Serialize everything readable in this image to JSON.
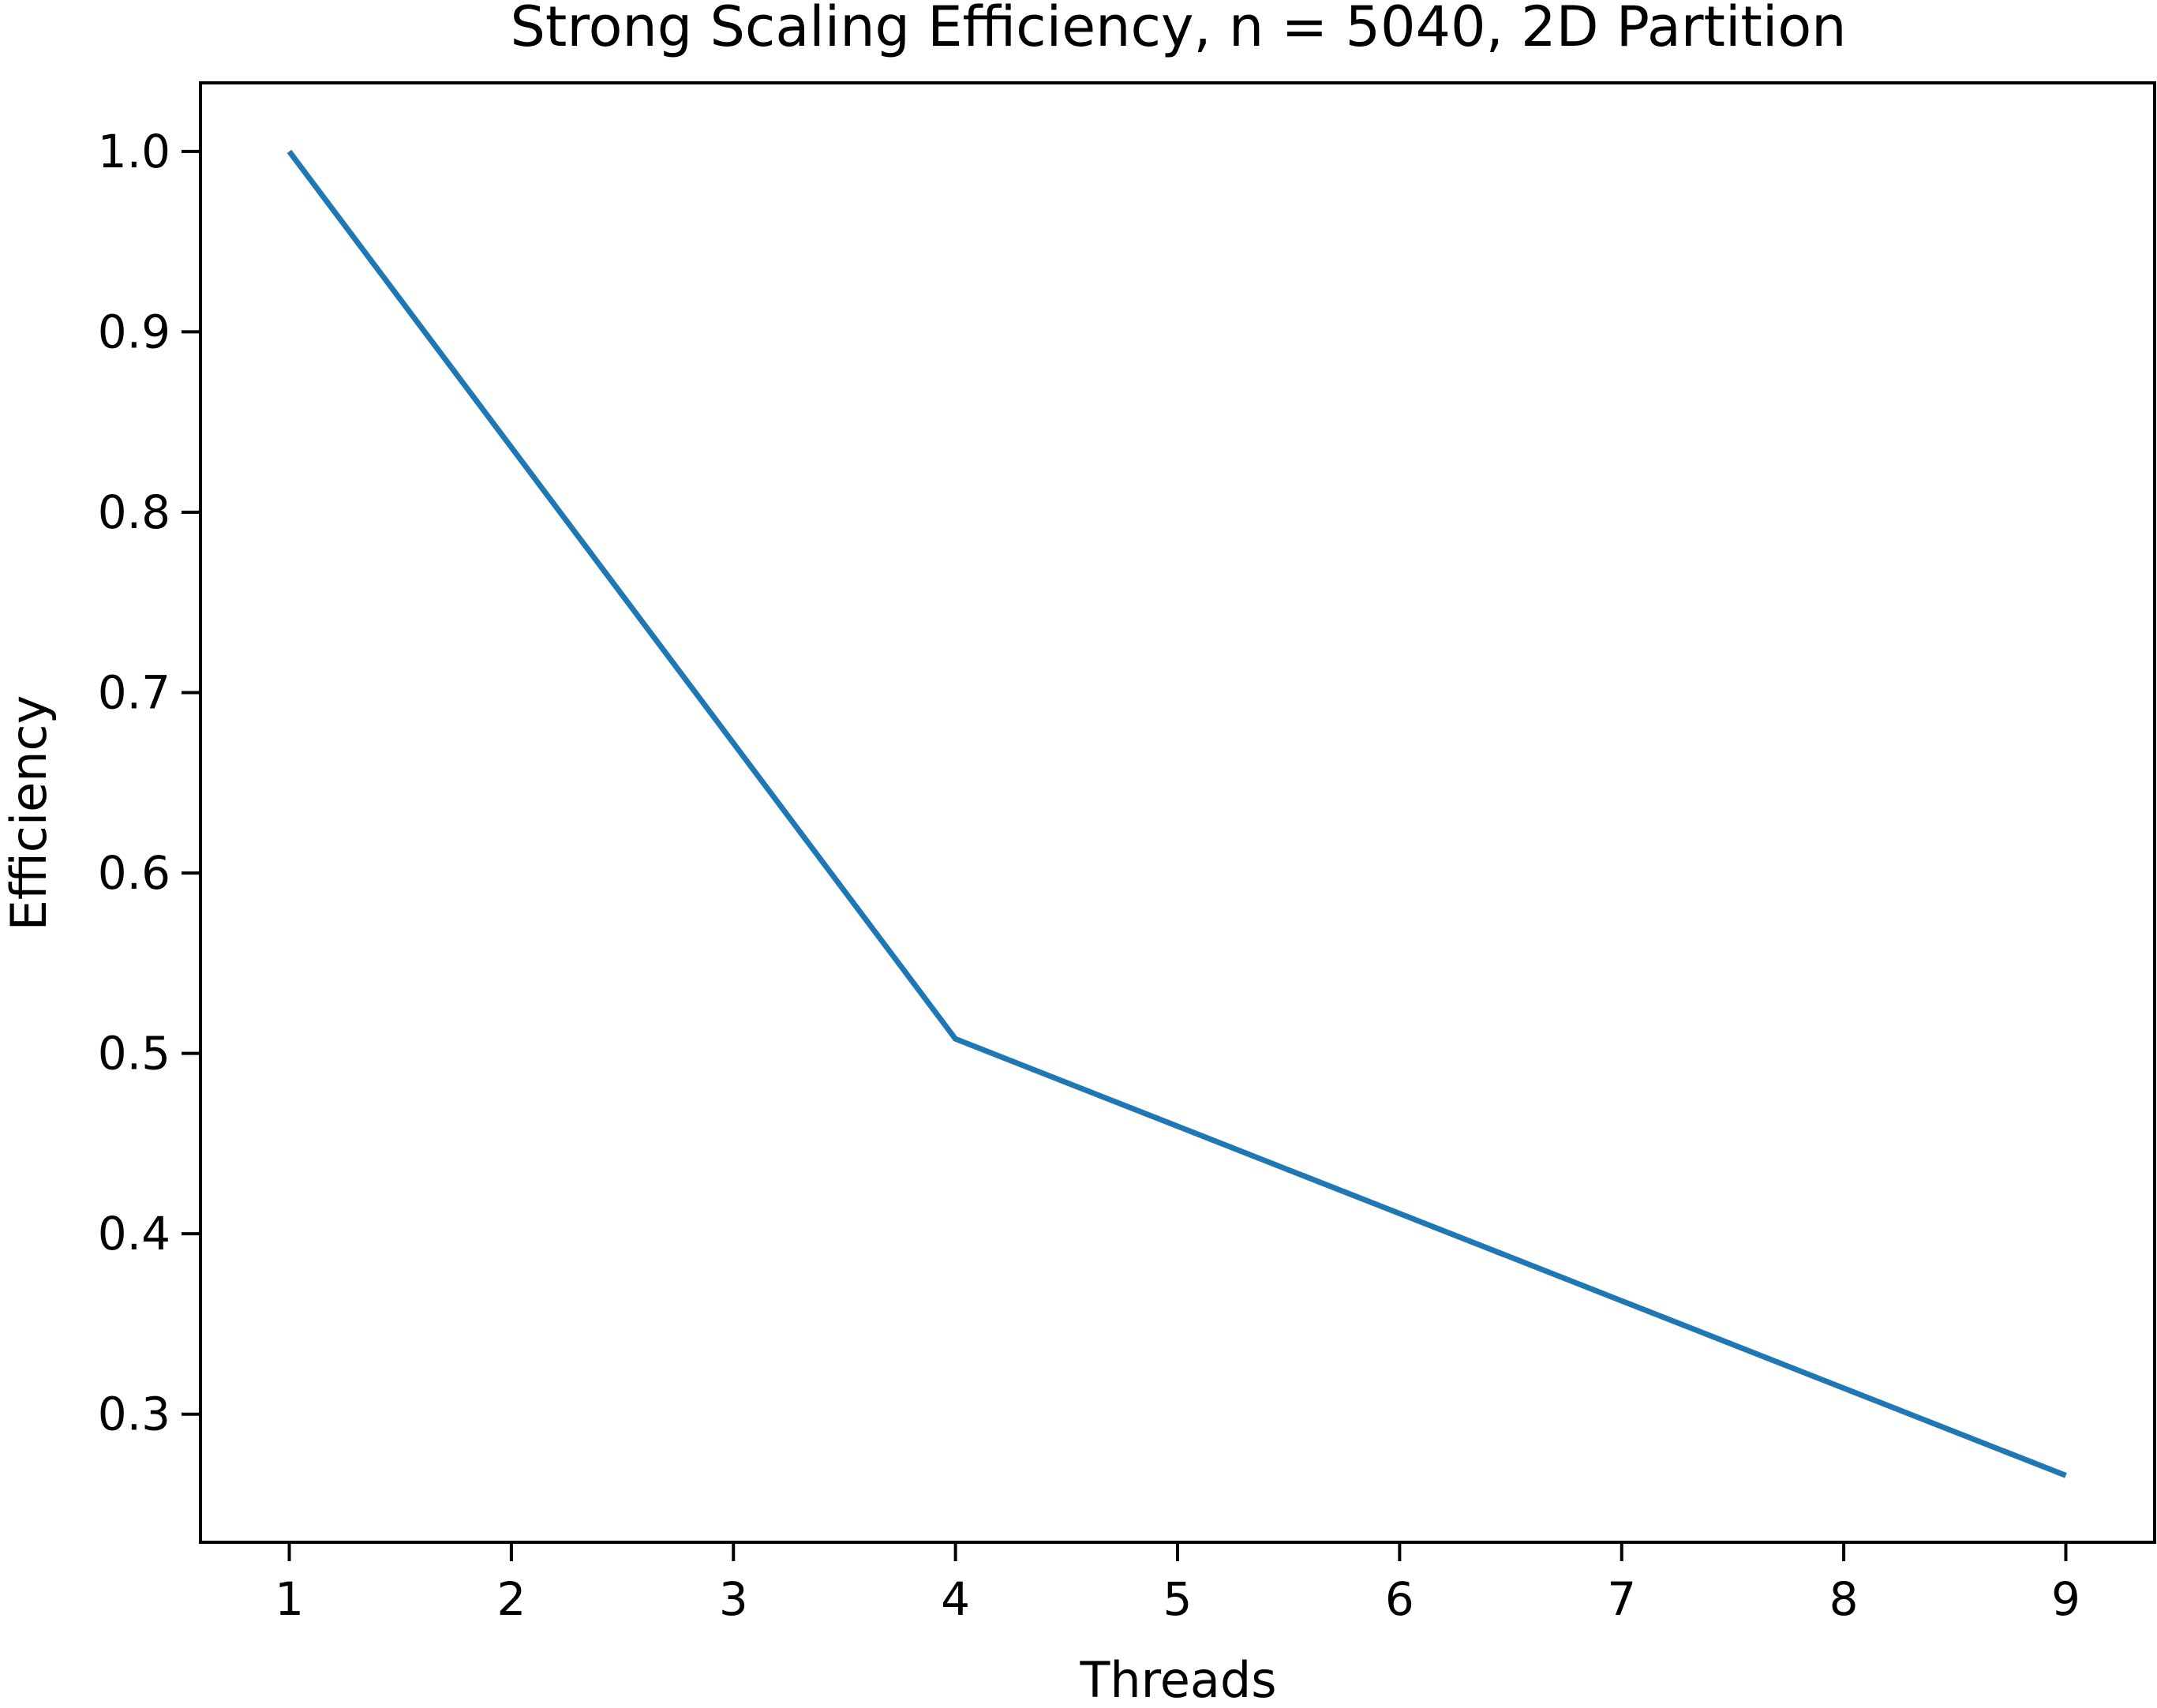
{
  "chart_data": {
    "type": "line",
    "title": "Strong Scaling Efficiency, n = 5040, 2D Partition",
    "xlabel": "Threads",
    "ylabel": "Efficiency",
    "x_ticks": [
      "1",
      "2",
      "3",
      "4",
      "5",
      "6",
      "7",
      "8",
      "9"
    ],
    "y_ticks": [
      "0.3",
      "0.4",
      "0.5",
      "0.6",
      "0.7",
      "0.8",
      "0.9",
      "1.0"
    ],
    "xlim": [
      0.6,
      9.4
    ],
    "ylim": [
      0.229,
      1.038
    ],
    "grid": false,
    "series": [
      {
        "x": [
          1,
          4,
          9
        ],
        "y": [
          1.0,
          0.508,
          0.266
        ],
        "color": "#1f77b4"
      }
    ]
  }
}
